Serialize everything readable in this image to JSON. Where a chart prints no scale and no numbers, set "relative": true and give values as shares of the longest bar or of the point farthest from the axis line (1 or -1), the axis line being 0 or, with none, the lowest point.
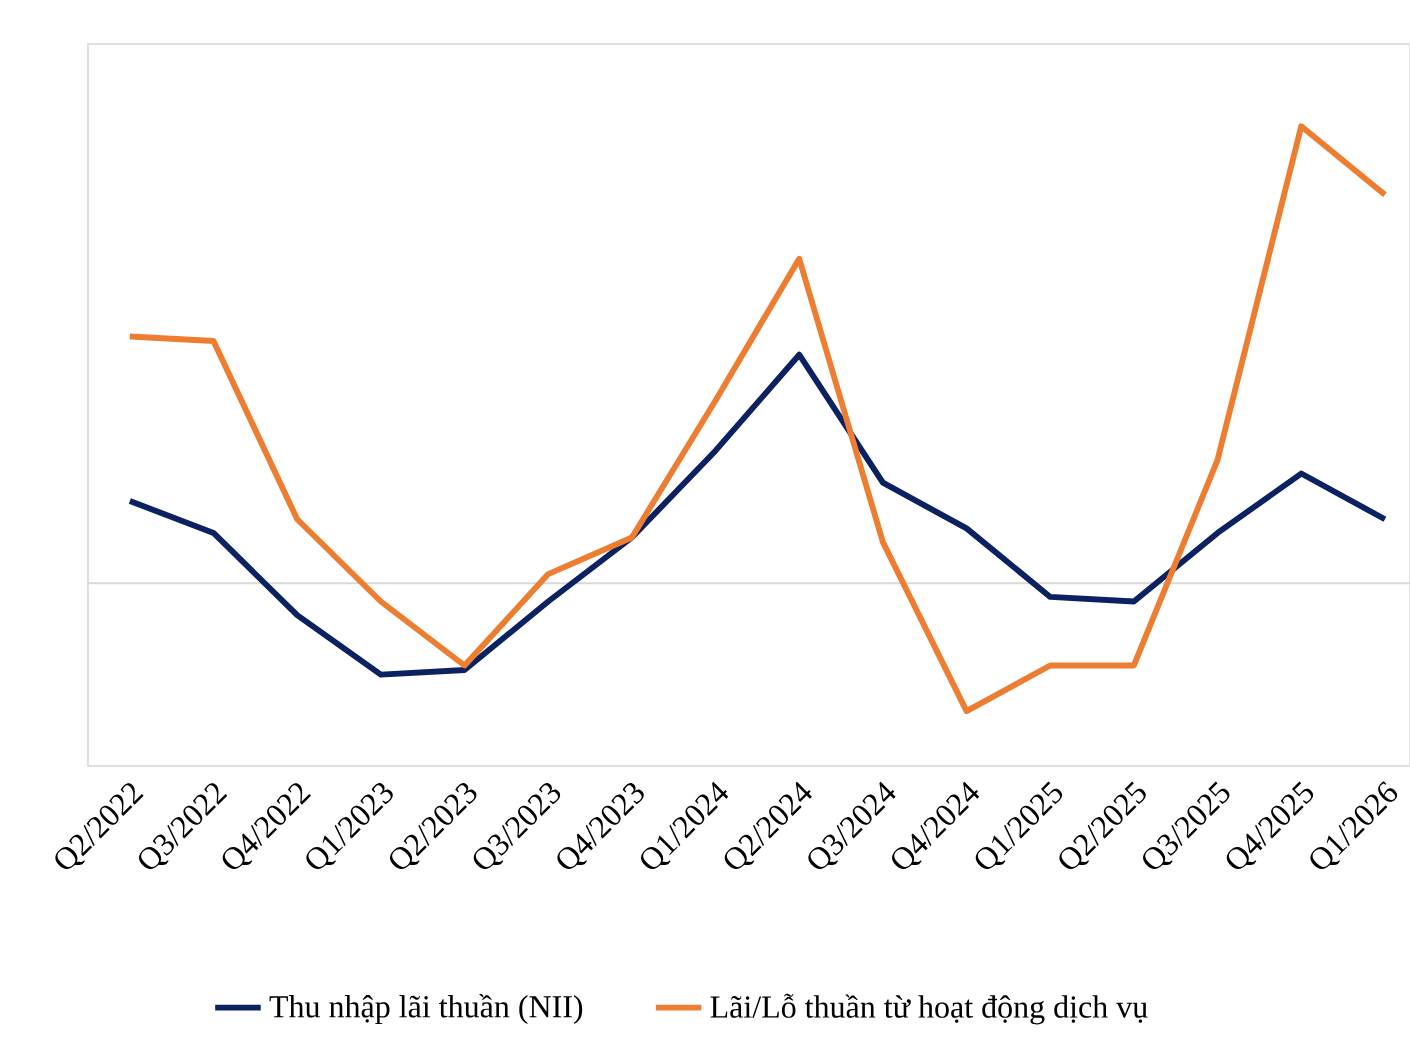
{
  "chart_data": {
    "type": "line",
    "relative": true,
    "categories": [
      "Q2/2022",
      "Q3/2022",
      "Q4/2022",
      "Q1/2023",
      "Q2/2023",
      "Q3/2023",
      "Q4/2023",
      "Q1/2024",
      "Q2/2024",
      "Q3/2024",
      "Q4/2024",
      "Q1/2025",
      "Q2/2025",
      "Q3/2025",
      "Q4/2025",
      "Q1/2026"
    ],
    "series": [
      {
        "name": "Thu nhập lãi thuần (NII)",
        "color": "#0b2161",
        "values": [
          0.18,
          0.11,
          -0.07,
          -0.2,
          -0.19,
          -0.04,
          0.1,
          0.29,
          0.5,
          0.22,
          0.12,
          -0.03,
          -0.04,
          0.11,
          0.24,
          0.14
        ]
      },
      {
        "name": "Lãi/Lỗ thuần từ hoạt động dịch vụ",
        "color": "#ed7d31",
        "values": [
          0.54,
          0.53,
          0.14,
          -0.04,
          -0.18,
          0.02,
          0.1,
          0.4,
          0.71,
          0.09,
          -0.28,
          -0.18,
          -0.18,
          0.27,
          1.0,
          0.85
        ]
      }
    ],
    "legend": "bottom",
    "marker": "none",
    "line_style": "solid"
  }
}
